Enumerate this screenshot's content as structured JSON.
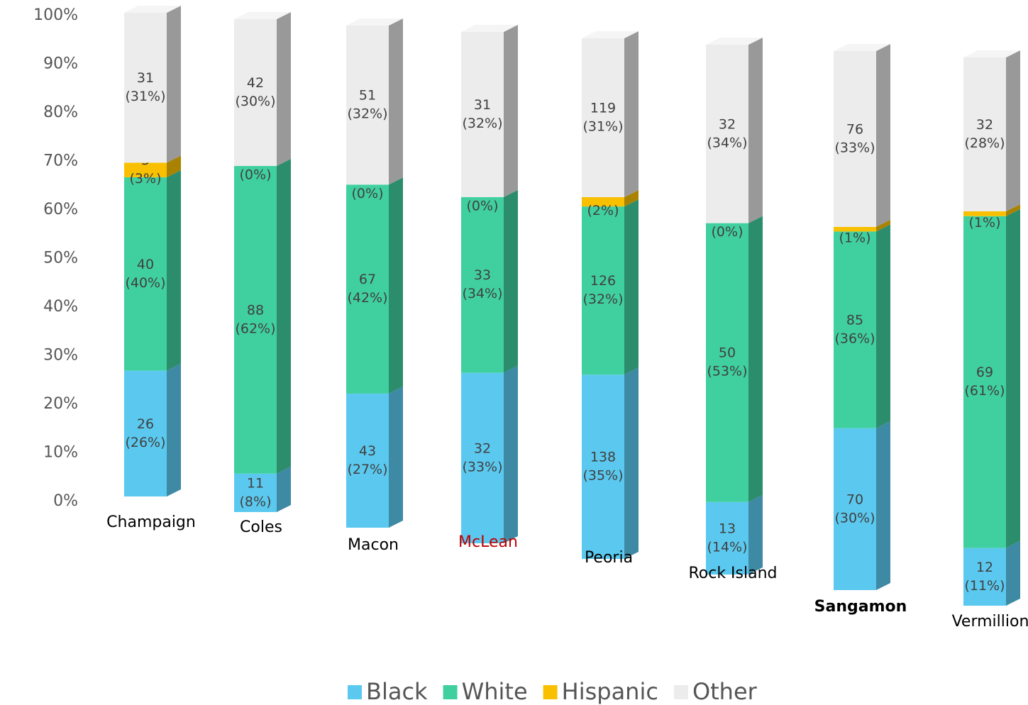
{
  "chart_data": {
    "type": "stacked_bar_3d",
    "categories": [
      "Champaign",
      "Coles",
      "Macon",
      "McLean",
      "Peoria",
      "Rock Island",
      "Sangamon",
      "Vermillion"
    ],
    "series": [
      {
        "name": "Black",
        "color": "#5bc9ef",
        "values": [
          26,
          11,
          43,
          32,
          138,
          13,
          70,
          12
        ],
        "share_labels": [
          "(26%)",
          "(8%)",
          "(27%)",
          "(33%)",
          "(35%)",
          "(14%)",
          "(30%)",
          "(11%)"
        ]
      },
      {
        "name": "White",
        "color": "#40d09f",
        "values": [
          40,
          88,
          67,
          33,
          126,
          50,
          85,
          69
        ],
        "share_labels": [
          "(40%)",
          "(62%)",
          "(42%)",
          "(34%)",
          "(32%)",
          "(53%)",
          "(36%)",
          "(61%)"
        ]
      },
      {
        "name": "Hispanic",
        "color": "#f8c000",
        "values": [
          3,
          0,
          0,
          0,
          7,
          0,
          2,
          1
        ],
        "share_labels": [
          "(3%)",
          "(0%)",
          "(0%)",
          "(0%)",
          "(2%)",
          "(0%)",
          "(1%)",
          "(1%)"
        ]
      },
      {
        "name": "Other",
        "color": "#ececec",
        "values": [
          31,
          42,
          51,
          31,
          119,
          32,
          76,
          32
        ],
        "share_labels": [
          "(31%)",
          "(30%)",
          "(32%)",
          "(32%)",
          "(31%)",
          "(34%)",
          "(33%)",
          "(28%)"
        ]
      }
    ],
    "ylim": [
      0,
      100
    ],
    "yticks": [
      {
        "value": 0,
        "label": "0%"
      },
      {
        "value": 10,
        "label": "10%"
      },
      {
        "value": 20,
        "label": "20%"
      },
      {
        "value": 30,
        "label": "30%"
      },
      {
        "value": 40,
        "label": "40%"
      },
      {
        "value": 50,
        "label": "50%"
      },
      {
        "value": 60,
        "label": "60%"
      },
      {
        "value": 70,
        "label": "70%"
      },
      {
        "value": 80,
        "label": "80%"
      },
      {
        "value": 90,
        "label": "90%"
      },
      {
        "value": 100,
        "label": "100%"
      }
    ],
    "grid": false
  }
}
